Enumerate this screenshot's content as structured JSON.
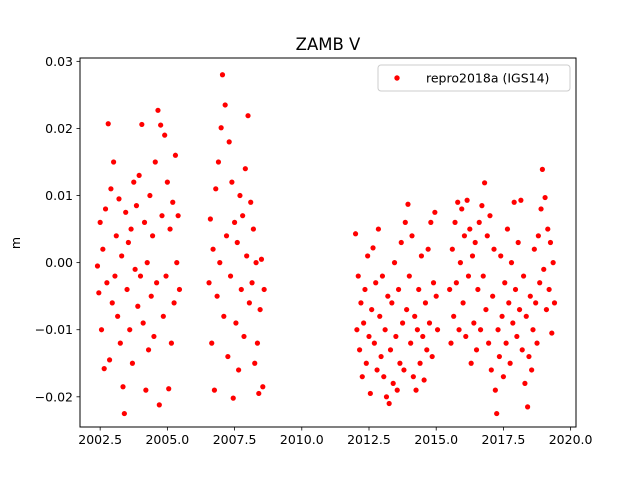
{
  "chart_data": {
    "type": "scatter",
    "title": "ZAMB V",
    "xlabel": "",
    "ylabel": "m",
    "xlim": [
      2001.75,
      2020.2
    ],
    "ylim": [
      -0.0245,
      0.0305
    ],
    "xticks": [
      2002.5,
      2005.0,
      2007.5,
      2010.0,
      2012.5,
      2015.0,
      2017.5,
      2020.0
    ],
    "xtick_labels": [
      "2002.5",
      "2005.0",
      "2007.5",
      "2010.0",
      "2012.5",
      "2015.0",
      "2017.5",
      "2020.0"
    ],
    "yticks": [
      -0.02,
      -0.01,
      0.0,
      0.01,
      0.02,
      0.03
    ],
    "ytick_labels": [
      "−0.02",
      "−0.01",
      "0.00",
      "0.01",
      "0.02",
      "0.03"
    ],
    "grid": false,
    "legend": {
      "position": "upper right",
      "entries": [
        "repro2018a (IGS14)"
      ]
    },
    "series": [
      {
        "name": "repro2018a (IGS14)",
        "color": "#ff0000",
        "marker": "circle",
        "points": [
          [
            2002.4,
            -0.0005
          ],
          [
            2002.45,
            -0.0045
          ],
          [
            2002.5,
            0.006
          ],
          [
            2002.55,
            -0.01
          ],
          [
            2002.6,
            0.002
          ],
          [
            2002.65,
            -0.0158
          ],
          [
            2002.7,
            0.008
          ],
          [
            2002.75,
            -0.003
          ],
          [
            2002.8,
            0.0207
          ],
          [
            2002.85,
            -0.0145
          ],
          [
            2002.9,
            0.011
          ],
          [
            2002.95,
            -0.006
          ],
          [
            2003.0,
            0.015
          ],
          [
            2003.05,
            -0.002
          ],
          [
            2003.1,
            0.004
          ],
          [
            2003.15,
            -0.008
          ],
          [
            2003.2,
            0.0095
          ],
          [
            2003.25,
            -0.012
          ],
          [
            2003.3,
            0.001
          ],
          [
            2003.35,
            -0.0185
          ],
          [
            2003.4,
            -0.0225
          ],
          [
            2003.45,
            0.0075
          ],
          [
            2003.5,
            -0.004
          ],
          [
            2003.55,
            0.003
          ],
          [
            2003.6,
            -0.01
          ],
          [
            2003.65,
            0.005
          ],
          [
            2003.7,
            -0.015
          ],
          [
            2003.75,
            0.012
          ],
          [
            2003.8,
            -0.001
          ],
          [
            2003.85,
            0.0085
          ],
          [
            2003.9,
            -0.0065
          ],
          [
            2003.95,
            0.013
          ],
          [
            2004.0,
            -0.002
          ],
          [
            2004.05,
            0.0206
          ],
          [
            2004.1,
            -0.009
          ],
          [
            2004.15,
            0.006
          ],
          [
            2004.2,
            -0.019
          ],
          [
            2004.25,
            0.0
          ],
          [
            2004.3,
            -0.013
          ],
          [
            2004.35,
            0.01
          ],
          [
            2004.4,
            -0.005
          ],
          [
            2004.45,
            0.004
          ],
          [
            2004.5,
            -0.011
          ],
          [
            2004.55,
            0.015
          ],
          [
            2004.6,
            -0.003
          ],
          [
            2004.65,
            0.0227
          ],
          [
            2004.7,
            -0.0212
          ],
          [
            2004.75,
            0.0205
          ],
          [
            2004.8,
            0.007
          ],
          [
            2004.85,
            -0.008
          ],
          [
            2004.9,
            0.019
          ],
          [
            2004.95,
            -0.002
          ],
          [
            2005.0,
            0.012
          ],
          [
            2005.05,
            -0.0188
          ],
          [
            2005.1,
            0.005
          ],
          [
            2005.15,
            -0.012
          ],
          [
            2005.2,
            0.009
          ],
          [
            2005.25,
            -0.006
          ],
          [
            2005.3,
            0.016
          ],
          [
            2005.35,
            0.0
          ],
          [
            2005.4,
            0.007
          ],
          [
            2005.45,
            -0.004
          ],
          [
            2006.55,
            -0.003
          ],
          [
            2006.6,
            0.0065
          ],
          [
            2006.65,
            -0.012
          ],
          [
            2006.7,
            0.002
          ],
          [
            2006.75,
            -0.019
          ],
          [
            2006.8,
            0.011
          ],
          [
            2006.85,
            -0.005
          ],
          [
            2006.9,
            0.015
          ],
          [
            2006.95,
            0.0
          ],
          [
            2007.0,
            0.0201
          ],
          [
            2007.05,
            0.028
          ],
          [
            2007.1,
            -0.008
          ],
          [
            2007.15,
            0.0235
          ],
          [
            2007.2,
            0.004
          ],
          [
            2007.25,
            -0.014
          ],
          [
            2007.3,
            0.018
          ],
          [
            2007.35,
            -0.002
          ],
          [
            2007.4,
            0.012
          ],
          [
            2007.45,
            -0.0202
          ],
          [
            2007.5,
            0.006
          ],
          [
            2007.55,
            -0.009
          ],
          [
            2007.6,
            0.003
          ],
          [
            2007.65,
            -0.016
          ],
          [
            2007.7,
            0.01
          ],
          [
            2007.75,
            -0.004
          ],
          [
            2007.8,
            0.007
          ],
          [
            2007.85,
            -0.011
          ],
          [
            2007.9,
            0.014
          ],
          [
            2007.95,
            0.001
          ],
          [
            2008.0,
            0.0219
          ],
          [
            2008.05,
            -0.006
          ],
          [
            2008.1,
            0.009
          ],
          [
            2008.15,
            -0.003
          ],
          [
            2008.2,
            0.005
          ],
          [
            2008.25,
            -0.015
          ],
          [
            2008.3,
            0.0
          ],
          [
            2008.35,
            -0.012
          ],
          [
            2008.4,
            -0.0195
          ],
          [
            2008.45,
            -0.007
          ],
          [
            2008.5,
            0.0005
          ],
          [
            2008.55,
            -0.0185
          ],
          [
            2008.6,
            -0.004
          ],
          [
            2012.0,
            0.0043
          ],
          [
            2012.05,
            -0.01
          ],
          [
            2012.1,
            -0.002
          ],
          [
            2012.15,
            -0.013
          ],
          [
            2012.2,
            -0.006
          ],
          [
            2012.25,
            -0.017
          ],
          [
            2012.3,
            -0.009
          ],
          [
            2012.35,
            -0.004
          ],
          [
            2012.4,
            -0.015
          ],
          [
            2012.45,
            0.001
          ],
          [
            2012.5,
            -0.011
          ],
          [
            2012.55,
            -0.0195
          ],
          [
            2012.6,
            -0.007
          ],
          [
            2012.65,
            0.0022
          ],
          [
            2012.7,
            -0.012
          ],
          [
            2012.75,
            -0.003
          ],
          [
            2012.8,
            -0.016
          ],
          [
            2012.85,
            0.005
          ],
          [
            2012.9,
            -0.008
          ],
          [
            2012.95,
            -0.014
          ],
          [
            2013.0,
            -0.002
          ],
          [
            2013.05,
            -0.017
          ],
          [
            2013.1,
            -0.01
          ],
          [
            2013.15,
            -0.02
          ],
          [
            2013.2,
            -0.005
          ],
          [
            2013.25,
            -0.021
          ],
          [
            2013.3,
            -0.013
          ],
          [
            2013.35,
            -0.006
          ],
          [
            2013.4,
            -0.018
          ],
          [
            2013.45,
            0.0
          ],
          [
            2013.5,
            -0.011
          ],
          [
            2013.55,
            -0.019
          ],
          [
            2013.6,
            -0.004
          ],
          [
            2013.65,
            -0.015
          ],
          [
            2013.7,
            0.003
          ],
          [
            2013.75,
            -0.009
          ],
          [
            2013.8,
            -0.016
          ],
          [
            2013.85,
            0.006
          ],
          [
            2013.9,
            -0.007
          ],
          [
            2013.95,
            0.0087
          ],
          [
            2014.0,
            -0.002
          ],
          [
            2014.05,
            -0.012
          ],
          [
            2014.1,
            0.004
          ],
          [
            2014.15,
            -0.017
          ],
          [
            2014.2,
            -0.008
          ],
          [
            2014.25,
            -0.019
          ],
          [
            2014.3,
            -0.01
          ],
          [
            2014.35,
            -0.004
          ],
          [
            2014.4,
            -0.015
          ],
          [
            2014.45,
            0.001
          ],
          [
            2014.5,
            -0.011
          ],
          [
            2014.55,
            -0.0175
          ],
          [
            2014.6,
            -0.006
          ],
          [
            2014.65,
            -0.013
          ],
          [
            2014.7,
            0.002
          ],
          [
            2014.75,
            -0.009
          ],
          [
            2014.8,
            0.006
          ],
          [
            2014.85,
            -0.014
          ],
          [
            2014.9,
            -0.003
          ],
          [
            2014.95,
            0.0075
          ],
          [
            2015.0,
            -0.005
          ],
          [
            2015.05,
            -0.01
          ],
          [
            2015.5,
            -0.004
          ],
          [
            2015.55,
            -0.012
          ],
          [
            2015.6,
            0.002
          ],
          [
            2015.65,
            -0.008
          ],
          [
            2015.7,
            0.006
          ],
          [
            2015.75,
            -0.003
          ],
          [
            2015.8,
            0.009
          ],
          [
            2015.85,
            -0.01
          ],
          [
            2015.9,
            0.0
          ],
          [
            2015.95,
            0.008
          ],
          [
            2016.0,
            -0.006
          ],
          [
            2016.05,
            0.004
          ],
          [
            2016.1,
            -0.011
          ],
          [
            2016.15,
            0.0093
          ],
          [
            2016.2,
            -0.002
          ],
          [
            2016.25,
            0.005
          ],
          [
            2016.3,
            -0.015
          ],
          [
            2016.35,
            0.001
          ],
          [
            2016.4,
            -0.009
          ],
          [
            2016.45,
            0.003
          ],
          [
            2016.5,
            -0.013
          ],
          [
            2016.55,
            -0.004
          ],
          [
            2016.6,
            0.006
          ],
          [
            2016.65,
            -0.01
          ],
          [
            2016.7,
            0.0085
          ],
          [
            2016.75,
            -0.002
          ],
          [
            2016.8,
            0.0119
          ],
          [
            2016.85,
            -0.007
          ],
          [
            2016.9,
            0.004
          ],
          [
            2016.95,
            -0.012
          ],
          [
            2017.0,
            0.007
          ],
          [
            2017.05,
            -0.016
          ],
          [
            2017.1,
            -0.005
          ],
          [
            2017.15,
            0.002
          ],
          [
            2017.2,
            -0.019
          ],
          [
            2017.25,
            -0.0225
          ],
          [
            2017.3,
            -0.01
          ],
          [
            2017.35,
            -0.014
          ],
          [
            2017.4,
            0.001
          ],
          [
            2017.45,
            -0.008
          ],
          [
            2017.5,
            -0.017
          ],
          [
            2017.55,
            -0.003
          ],
          [
            2017.6,
            -0.012
          ],
          [
            2017.65,
            0.005
          ],
          [
            2017.7,
            -0.006
          ],
          [
            2017.75,
            -0.015
          ],
          [
            2017.8,
            0.0
          ],
          [
            2017.85,
            -0.009
          ],
          [
            2017.9,
            0.009
          ],
          [
            2017.95,
            -0.004
          ],
          [
            2018.0,
            -0.011
          ],
          [
            2018.05,
            0.003
          ],
          [
            2018.1,
            -0.007
          ],
          [
            2018.15,
            0.0093
          ],
          [
            2018.2,
            -0.013
          ],
          [
            2018.25,
            -0.002
          ],
          [
            2018.3,
            -0.018
          ],
          [
            2018.35,
            -0.008
          ],
          [
            2018.4,
            -0.0215
          ],
          [
            2018.45,
            -0.014
          ],
          [
            2018.5,
            -0.005
          ],
          [
            2018.55,
            -0.016
          ],
          [
            2018.6,
            -0.01
          ],
          [
            2018.65,
            0.002
          ],
          [
            2018.7,
            -0.006
          ],
          [
            2018.75,
            -0.012
          ],
          [
            2018.8,
            0.004
          ],
          [
            2018.85,
            -0.003
          ],
          [
            2018.9,
            0.008
          ],
          [
            2018.95,
            0.0139
          ],
          [
            2019.0,
            -0.001
          ],
          [
            2019.05,
            0.0097
          ],
          [
            2019.1,
            -0.007
          ],
          [
            2019.15,
            0.005
          ],
          [
            2019.2,
            -0.004
          ],
          [
            2019.25,
            0.003
          ],
          [
            2019.3,
            -0.0105
          ],
          [
            2019.35,
            0.0
          ],
          [
            2019.4,
            -0.006
          ]
        ]
      }
    ]
  }
}
